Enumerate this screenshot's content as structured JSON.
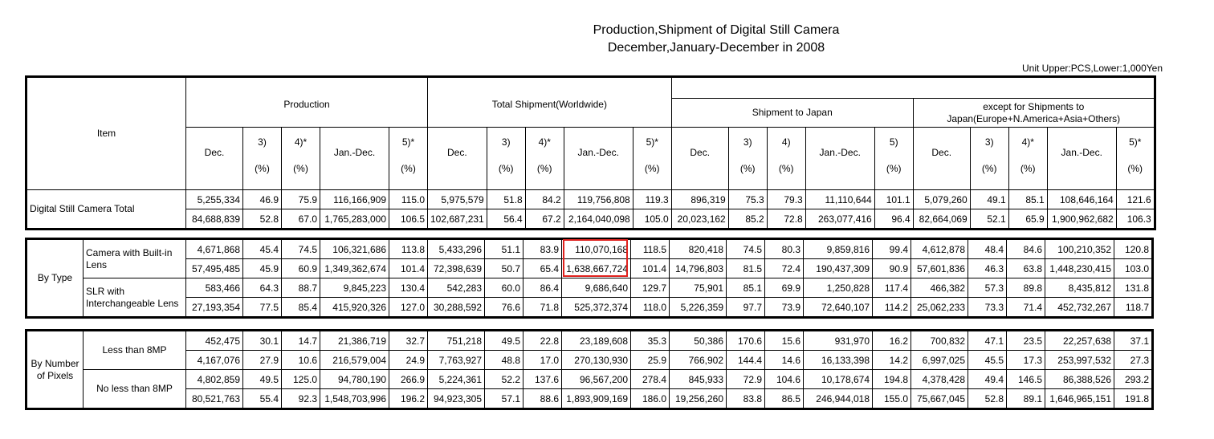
{
  "title_line1": "Production,Shipment of Digital Still Camera",
  "title_line2": "December,January-December in 2008",
  "unit_note": "Unit Upper:PCS,Lower:1,000Yen",
  "header": {
    "item": "Item",
    "groups": [
      "Production",
      "Total Shipment(Worldwide)",
      "Shipment to Japan",
      "except for Shipments to Japan(Europe+N.America+Asia+Others)"
    ],
    "columns": [
      {
        "label": "Dec.",
        "pct": ""
      },
      {
        "label": "3)",
        "pct": "(%)"
      },
      {
        "label": "4)*",
        "pct": "(%)"
      },
      {
        "label": "Jan.-Dec.",
        "pct": ""
      },
      {
        "label": "5)*",
        "pct": "(%)"
      },
      {
        "label": "Dec.",
        "pct": ""
      },
      {
        "label": "3)",
        "pct": "(%)"
      },
      {
        "label": "4)*",
        "pct": "(%)"
      },
      {
        "label": "Jan.-Dec.",
        "pct": ""
      },
      {
        "label": "5)*",
        "pct": "(%)"
      },
      {
        "label": "Dec.",
        "pct": ""
      },
      {
        "label": "3)",
        "pct": "(%)"
      },
      {
        "label": "4)",
        "pct": "(%)"
      },
      {
        "label": "Jan.-Dec.",
        "pct": ""
      },
      {
        "label": "5)",
        "pct": "(%)"
      },
      {
        "label": "Dec.",
        "pct": ""
      },
      {
        "label": "3)",
        "pct": "(%)"
      },
      {
        "label": "4)*",
        "pct": "(%)"
      },
      {
        "label": "Jan.-Dec.",
        "pct": ""
      },
      {
        "label": "5)*",
        "pct": "(%)"
      }
    ]
  },
  "total": {
    "label": "Digital Still Camera Total",
    "rows": [
      [
        "5,255,334",
        "46.9",
        "75.9",
        "116,166,909",
        "115.0",
        "5,975,579",
        "51.8",
        "84.2",
        "119,756,808",
        "119.3",
        "896,319",
        "75.3",
        "79.3",
        "11,110,644",
        "101.1",
        "5,079,260",
        "49.1",
        "85.1",
        "108,646,164",
        "121.6"
      ],
      [
        "84,688,839",
        "52.8",
        "67.0",
        "1,765,283,000",
        "106.5",
        "102,687,231",
        "56.4",
        "67.2",
        "2,164,040,098",
        "105.0",
        "20,023,162",
        "85.2",
        "72.8",
        "263,077,416",
        "96.4",
        "82,664,069",
        "52.1",
        "65.9",
        "1,900,962,682",
        "106.3"
      ]
    ]
  },
  "by_type": {
    "label": "By Type",
    "subgroups": [
      {
        "label": "Camera with Built-in Lens",
        "rows": [
          [
            "4,671,868",
            "45.4",
            "74.5",
            "106,321,686",
            "113.8",
            "5,433,296",
            "51.1",
            "83.9",
            "110,070,168",
            "118.5",
            "820,418",
            "74.5",
            "80.3",
            "9,859,816",
            "99.4",
            "4,612,878",
            "48.4",
            "84.6",
            "100,210,352",
            "120.8"
          ],
          [
            "57,495,485",
            "45.9",
            "60.9",
            "1,349,362,674",
            "101.4",
            "72,398,639",
            "50.7",
            "65.4",
            "1,638,667,724",
            "101.4",
            "14,796,803",
            "81.5",
            "72.4",
            "190,437,309",
            "90.9",
            "57,601,836",
            "46.3",
            "63.8",
            "1,448,230,415",
            "103.0"
          ]
        ]
      },
      {
        "label": "SLR with Interchangeable Lens",
        "rows": [
          [
            "583,466",
            "64.3",
            "88.7",
            "9,845,223",
            "130.4",
            "542,283",
            "60.0",
            "86.4",
            "9,686,640",
            "129.7",
            "75,901",
            "85.1",
            "69.9",
            "1,250,828",
            "117.4",
            "466,382",
            "57.3",
            "89.8",
            "8,435,812",
            "131.8"
          ],
          [
            "27,193,354",
            "77.5",
            "85.4",
            "415,920,326",
            "127.0",
            "30,288,592",
            "76.6",
            "71.8",
            "525,372,374",
            "118.0",
            "5,226,359",
            "97.7",
            "73.9",
            "72,640,107",
            "114.2",
            "25,062,233",
            "73.3",
            "71.4",
            "452,732,267",
            "118.7"
          ]
        ]
      }
    ]
  },
  "by_pixels": {
    "label": "By Number of Pixels",
    "subgroups": [
      {
        "label": "Less than 8MP",
        "rows": [
          [
            "452,475",
            "30.1",
            "14.7",
            "21,386,719",
            "32.7",
            "751,218",
            "49.5",
            "22.8",
            "23,189,608",
            "35.3",
            "50,386",
            "170.6",
            "15.6",
            "931,970",
            "16.2",
            "700,832",
            "47.1",
            "23.5",
            "22,257,638",
            "37.1"
          ],
          [
            "4,167,076",
            "27.9",
            "10.6",
            "216,579,004",
            "24.9",
            "7,763,927",
            "48.8",
            "17.0",
            "270,130,930",
            "25.9",
            "766,902",
            "144.4",
            "14.6",
            "16,133,398",
            "14.2",
            "6,997,025",
            "45.5",
            "17.3",
            "253,997,532",
            "27.3"
          ]
        ]
      },
      {
        "label": "No less than 8MP",
        "rows": [
          [
            "4,802,859",
            "49.5",
            "125.0",
            "94,780,190",
            "266.9",
            "5,224,361",
            "52.2",
            "137.6",
            "96,567,200",
            "278.4",
            "845,933",
            "72.9",
            "104.6",
            "10,178,674",
            "194.8",
            "4,378,428",
            "49.4",
            "146.5",
            "86,388,526",
            "293.2"
          ],
          [
            "80,521,763",
            "55.4",
            "92.3",
            "1,548,703,996",
            "196.2",
            "94,923,305",
            "57.1",
            "88.6",
            "1,893,909,169",
            "186.0",
            "19,256,260",
            "83.8",
            "86.5",
            "246,944,018",
            "155.0",
            "75,667,045",
            "52.8",
            "89.1",
            "1,646,965,151",
            "191.8"
          ]
        ]
      }
    ]
  },
  "highlight_color": "#e0211d"
}
